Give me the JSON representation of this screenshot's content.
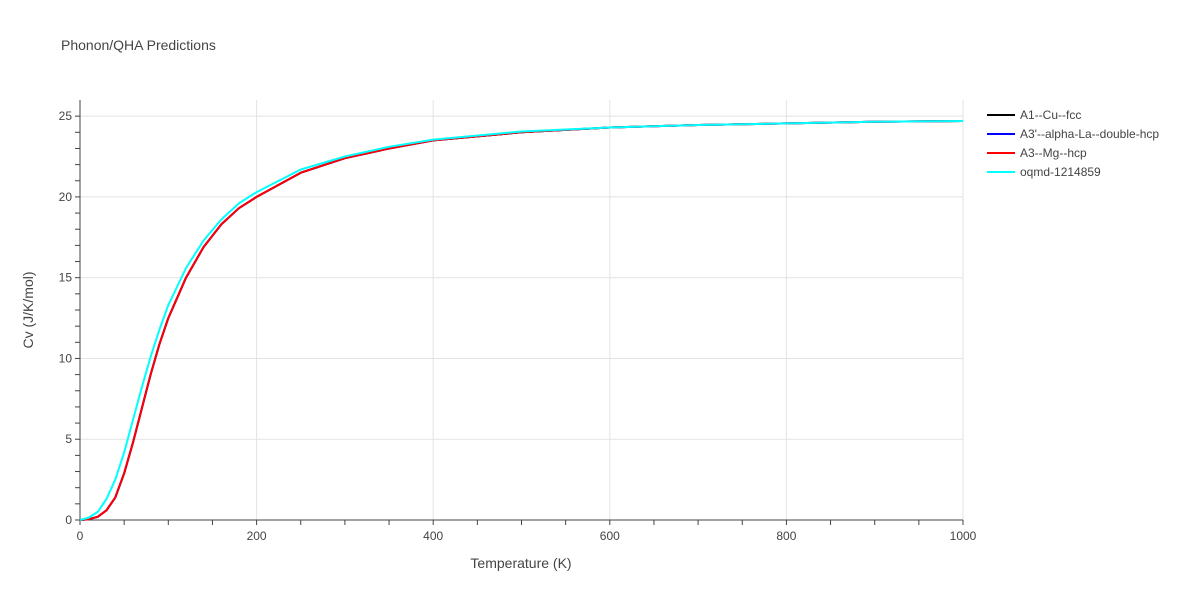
{
  "chart_data": {
    "type": "line",
    "title": "Phonon/QHA Predictions",
    "xlabel": "Temperature (K)",
    "ylabel": "Cv (J/K/mol)",
    "xlim": [
      0,
      1000
    ],
    "ylim": [
      0,
      26
    ],
    "xticks": [
      0,
      200,
      400,
      600,
      800,
      1000
    ],
    "yticks": [
      0,
      5,
      10,
      15,
      20,
      25
    ],
    "grid": true,
    "legend_position": "top-right",
    "x": [
      0,
      10,
      20,
      30,
      40,
      50,
      60,
      70,
      80,
      90,
      100,
      120,
      140,
      160,
      180,
      200,
      250,
      300,
      350,
      400,
      500,
      600,
      700,
      800,
      900,
      1000
    ],
    "series": [
      {
        "name": "A1--Cu--fcc",
        "color": "#000000",
        "values": [
          0,
          0.05,
          0.2,
          0.6,
          1.4,
          2.9,
          4.8,
          6.9,
          9.0,
          10.9,
          12.5,
          15.0,
          16.9,
          18.3,
          19.3,
          20.0,
          21.5,
          22.4,
          23.0,
          23.5,
          24.0,
          24.3,
          24.45,
          24.55,
          24.65,
          24.7
        ]
      },
      {
        "name": "A3'--alpha-La--double-hcp",
        "color": "#0000ff",
        "values": [
          0,
          0.05,
          0.2,
          0.6,
          1.4,
          2.9,
          4.8,
          6.9,
          9.0,
          10.9,
          12.5,
          15.0,
          16.9,
          18.3,
          19.3,
          20.0,
          21.5,
          22.4,
          23.0,
          23.5,
          24.0,
          24.3,
          24.45,
          24.55,
          24.65,
          24.7
        ]
      },
      {
        "name": "A3--Mg--hcp",
        "color": "#ff0000",
        "values": [
          0,
          0.05,
          0.2,
          0.6,
          1.4,
          2.9,
          4.8,
          6.9,
          9.0,
          10.9,
          12.5,
          15.0,
          16.9,
          18.3,
          19.3,
          20.0,
          21.5,
          22.4,
          23.0,
          23.5,
          24.0,
          24.3,
          24.45,
          24.55,
          24.65,
          24.7
        ]
      },
      {
        "name": "oqmd-1214859",
        "color": "#00ffff",
        "values": [
          0,
          0.15,
          0.5,
          1.3,
          2.5,
          4.2,
          6.2,
          8.2,
          10.1,
          11.8,
          13.3,
          15.6,
          17.3,
          18.6,
          19.6,
          20.3,
          21.7,
          22.5,
          23.1,
          23.55,
          24.05,
          24.3,
          24.45,
          24.55,
          24.65,
          24.7
        ]
      }
    ]
  }
}
